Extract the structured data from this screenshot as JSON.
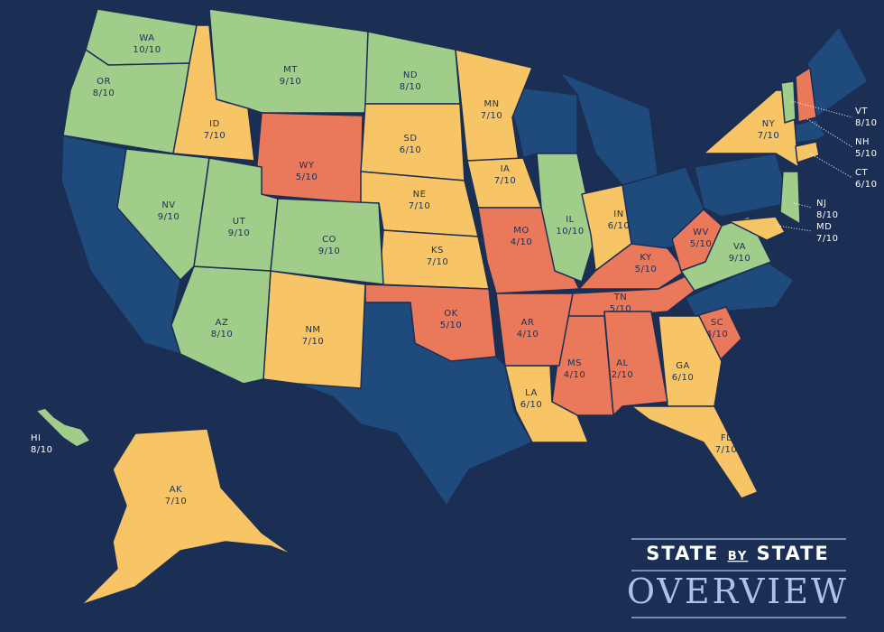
{
  "title": {
    "words": [
      "STATE",
      "BY",
      "STATE"
    ],
    "main": "OVERVIEW"
  },
  "states": [
    {
      "abbr": "WA",
      "score": "10/10",
      "color": "#a0cd8a"
    },
    {
      "abbr": "OR",
      "score": "8/10",
      "color": "#a0cd8a"
    },
    {
      "abbr": "ID",
      "score": "7/10",
      "color": "#f8c566"
    },
    {
      "abbr": "MT",
      "score": "9/10",
      "color": "#a0cd8a"
    },
    {
      "abbr": "WY",
      "score": "5/10",
      "color": "#e9795a"
    },
    {
      "abbr": "ND",
      "score": "8/10",
      "color": "#a0cd8a"
    },
    {
      "abbr": "SD",
      "score": "6/10",
      "color": "#f8c566"
    },
    {
      "abbr": "NE",
      "score": "7/10",
      "color": "#f8c566"
    },
    {
      "abbr": "KS",
      "score": "7/10",
      "color": "#f8c566"
    },
    {
      "abbr": "MN",
      "score": "7/10",
      "color": "#f8c566"
    },
    {
      "abbr": "IA",
      "score": "7/10",
      "color": "#f8c566"
    },
    {
      "abbr": "MO",
      "score": "4/10",
      "color": "#e9795a"
    },
    {
      "abbr": "IL",
      "score": "10/10",
      "color": "#a0cd8a"
    },
    {
      "abbr": "IN",
      "score": "6/10",
      "color": "#f8c566"
    },
    {
      "abbr": "KY",
      "score": "5/10",
      "color": "#e9795a"
    },
    {
      "abbr": "TN",
      "score": "5/10",
      "color": "#e9795a"
    },
    {
      "abbr": "WV",
      "score": "5/10",
      "color": "#e9795a"
    },
    {
      "abbr": "VA",
      "score": "9/10",
      "color": "#a0cd8a"
    },
    {
      "abbr": "NY",
      "score": "7/10",
      "color": "#f8c566"
    },
    {
      "abbr": "VT",
      "score": "8/10",
      "color": "#a0cd8a"
    },
    {
      "abbr": "NH",
      "score": "5/10",
      "color": "#e9795a"
    },
    {
      "abbr": "CT",
      "score": "6/10",
      "color": "#f8c566"
    },
    {
      "abbr": "NJ",
      "score": "8/10",
      "color": "#a0cd8a"
    },
    {
      "abbr": "MD",
      "score": "7/10",
      "color": "#f8c566"
    },
    {
      "abbr": "SC",
      "score": "4/10",
      "color": "#e9795a"
    },
    {
      "abbr": "GA",
      "score": "6/10",
      "color": "#f8c566"
    },
    {
      "abbr": "FL",
      "score": "7/10",
      "color": "#f8c566"
    },
    {
      "abbr": "AL",
      "score": "2/10",
      "color": "#e9795a"
    },
    {
      "abbr": "MS",
      "score": "4/10",
      "color": "#e9795a"
    },
    {
      "abbr": "LA",
      "score": "6/10",
      "color": "#f8c566"
    },
    {
      "abbr": "AR",
      "score": "4/10",
      "color": "#e9795a"
    },
    {
      "abbr": "OK",
      "score": "5/10",
      "color": "#e9795a"
    },
    {
      "abbr": "NM",
      "score": "7/10",
      "color": "#f8c566"
    },
    {
      "abbr": "AZ",
      "score": "8/10",
      "color": "#a0cd8a"
    },
    {
      "abbr": "NV",
      "score": "9/10",
      "color": "#a0cd8a"
    },
    {
      "abbr": "UT",
      "score": "9/10",
      "color": "#a0cd8a"
    },
    {
      "abbr": "CO",
      "score": "9/10",
      "color": "#a0cd8a"
    },
    {
      "abbr": "AK",
      "score": "7/10",
      "color": "#f8c566"
    },
    {
      "abbr": "HI",
      "score": "8/10",
      "color": "#a0cd8a"
    }
  ]
}
